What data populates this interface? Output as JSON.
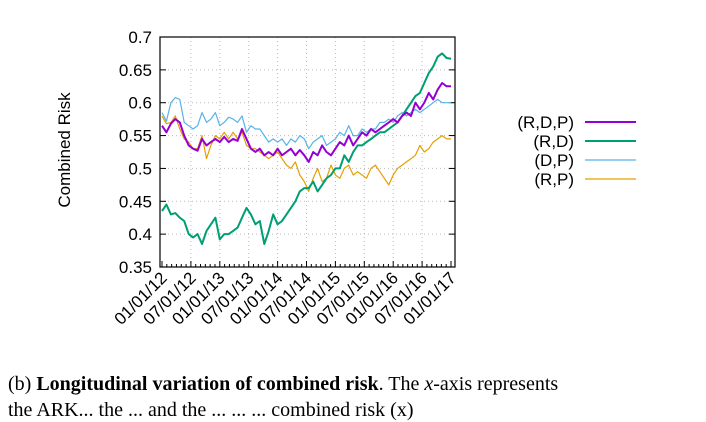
{
  "chart_data": {
    "type": "line",
    "ylabel": "Combined Risk",
    "ylim": [
      0.35,
      0.7
    ],
    "yticks": [
      "0.35",
      "0.4",
      "0.45",
      "0.5",
      "0.55",
      "0.6",
      "0.65",
      "0.7"
    ],
    "xticks": [
      "01/01/12",
      "07/01/12",
      "01/01/13",
      "07/01/13",
      "01/01/14",
      "07/01/14",
      "01/01/15",
      "07/01/15",
      "01/01/16",
      "07/01/16",
      "01/01/17"
    ],
    "grid": true,
    "legend": "right",
    "series": [
      {
        "name": "(R,D,P)",
        "color": "#9400d3",
        "values": [
          0.565,
          0.555,
          0.568,
          0.575,
          0.57,
          0.55,
          0.535,
          0.53,
          0.527,
          0.545,
          0.535,
          0.54,
          0.545,
          0.54,
          0.548,
          0.54,
          0.545,
          0.542,
          0.56,
          0.545,
          0.53,
          0.525,
          0.53,
          0.52,
          0.525,
          0.52,
          0.53,
          0.52,
          0.525,
          0.53,
          0.52,
          0.528,
          0.52,
          0.51,
          0.525,
          0.52,
          0.535,
          0.525,
          0.52,
          0.53,
          0.54,
          0.535,
          0.55,
          0.535,
          0.545,
          0.555,
          0.55,
          0.56,
          0.555,
          0.56,
          0.565,
          0.57,
          0.575,
          0.57,
          0.58,
          0.585,
          0.58,
          0.6,
          0.59,
          0.6,
          0.615,
          0.605,
          0.62,
          0.63,
          0.625,
          0.625
        ]
      },
      {
        "name": "(R,D)",
        "color": "#009e73",
        "values": [
          0.435,
          0.445,
          0.43,
          0.432,
          0.425,
          0.42,
          0.4,
          0.395,
          0.4,
          0.385,
          0.405,
          0.415,
          0.425,
          0.392,
          0.4,
          0.4,
          0.405,
          0.41,
          0.425,
          0.44,
          0.43,
          0.415,
          0.42,
          0.385,
          0.405,
          0.43,
          0.415,
          0.42,
          0.43,
          0.44,
          0.45,
          0.465,
          0.47,
          0.47,
          0.48,
          0.465,
          0.475,
          0.485,
          0.49,
          0.5,
          0.5,
          0.52,
          0.51,
          0.525,
          0.535,
          0.535,
          0.54,
          0.545,
          0.55,
          0.555,
          0.555,
          0.56,
          0.565,
          0.57,
          0.58,
          0.59,
          0.6,
          0.61,
          0.615,
          0.63,
          0.645,
          0.655,
          0.67,
          0.675,
          0.668,
          0.667
        ]
      },
      {
        "name": "(D,P)",
        "color": "#56b4e9",
        "values": [
          0.585,
          0.572,
          0.6,
          0.608,
          0.605,
          0.57,
          0.565,
          0.56,
          0.565,
          0.585,
          0.57,
          0.575,
          0.585,
          0.565,
          0.57,
          0.578,
          0.575,
          0.57,
          0.58,
          0.555,
          0.565,
          0.56,
          0.56,
          0.55,
          0.54,
          0.545,
          0.54,
          0.545,
          0.535,
          0.545,
          0.54,
          0.55,
          0.545,
          0.53,
          0.54,
          0.545,
          0.55,
          0.535,
          0.54,
          0.545,
          0.555,
          0.55,
          0.565,
          0.55,
          0.55,
          0.56,
          0.555,
          0.56,
          0.56,
          0.57,
          0.57,
          0.575,
          0.57,
          0.58,
          0.585,
          0.58,
          0.585,
          0.59,
          0.585,
          0.59,
          0.595,
          0.6,
          0.605,
          0.6,
          0.6,
          0.6
        ]
      },
      {
        "name": "(R,P)",
        "color": "#e69f00",
        "values": [
          0.58,
          0.568,
          0.57,
          0.58,
          0.56,
          0.545,
          0.54,
          0.53,
          0.53,
          0.55,
          0.515,
          0.535,
          0.55,
          0.545,
          0.555,
          0.545,
          0.555,
          0.545,
          0.555,
          0.535,
          0.53,
          0.53,
          0.525,
          0.52,
          0.515,
          0.52,
          0.525,
          0.515,
          0.505,
          0.5,
          0.51,
          0.49,
          0.48,
          0.465,
          0.485,
          0.5,
          0.48,
          0.485,
          0.505,
          0.49,
          0.485,
          0.5,
          0.505,
          0.49,
          0.495,
          0.49,
          0.485,
          0.5,
          0.505,
          0.495,
          0.485,
          0.475,
          0.49,
          0.5,
          0.505,
          0.51,
          0.515,
          0.52,
          0.535,
          0.525,
          0.53,
          0.54,
          0.545,
          0.55,
          0.545,
          0.545
        ]
      }
    ]
  },
  "caption": {
    "label": "(b)",
    "title": "Longitudinal variation of combined risk",
    "rest_before_x": ". The",
    "x_var": "x",
    "rest_after_x": "-axis represents",
    "line2": "the ARK... the ... and the ... ... ... combined risk (x)"
  }
}
